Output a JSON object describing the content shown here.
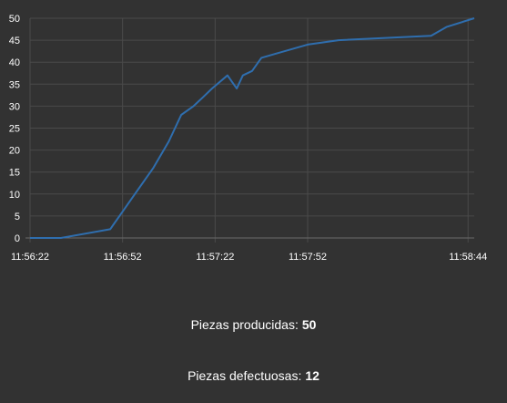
{
  "chart_data": {
    "type": "line",
    "title": "",
    "xlabel": "",
    "ylabel": "",
    "ylim": [
      0,
      50
    ],
    "yticks": [
      0,
      5,
      10,
      15,
      20,
      25,
      30,
      35,
      40,
      45,
      50
    ],
    "xlim": [
      "11:56:22",
      "11:58:46"
    ],
    "xticks": [
      "11:56:22",
      "11:56:52",
      "11:57:22",
      "11:57:52",
      "11:58:44"
    ],
    "grid": true,
    "colors": {
      "line": "#2f6eae",
      "grid": "#4a4a4a",
      "axis": "#6a6a6a",
      "text": "#ffffff"
    },
    "series": [
      {
        "x": [
          "11:56:22",
          "11:56:32",
          "11:56:48",
          "11:56:49",
          "11:56:52",
          "11:56:56",
          "11:57:02",
          "11:57:07",
          "11:57:11",
          "11:57:15",
          "11:57:18",
          "11:57:21",
          "11:57:26",
          "11:57:28",
          "11:57:29",
          "11:57:31",
          "11:57:34",
          "11:57:36",
          "11:57:37",
          "11:57:42",
          "11:57:52",
          "11:58:02",
          "11:58:32",
          "11:58:37",
          "11:58:46"
        ],
        "y": [
          0,
          0,
          2,
          3,
          6,
          10,
          16,
          22,
          28,
          30,
          32,
          34,
          37,
          35,
          34,
          37,
          38,
          40,
          41,
          42,
          44,
          45,
          46,
          48,
          50
        ]
      }
    ]
  },
  "stats": {
    "produced_label": "Piezas producidas:",
    "produced_value": "50",
    "defective_label": "Piezas defectuosas:",
    "defective_value": "12"
  }
}
